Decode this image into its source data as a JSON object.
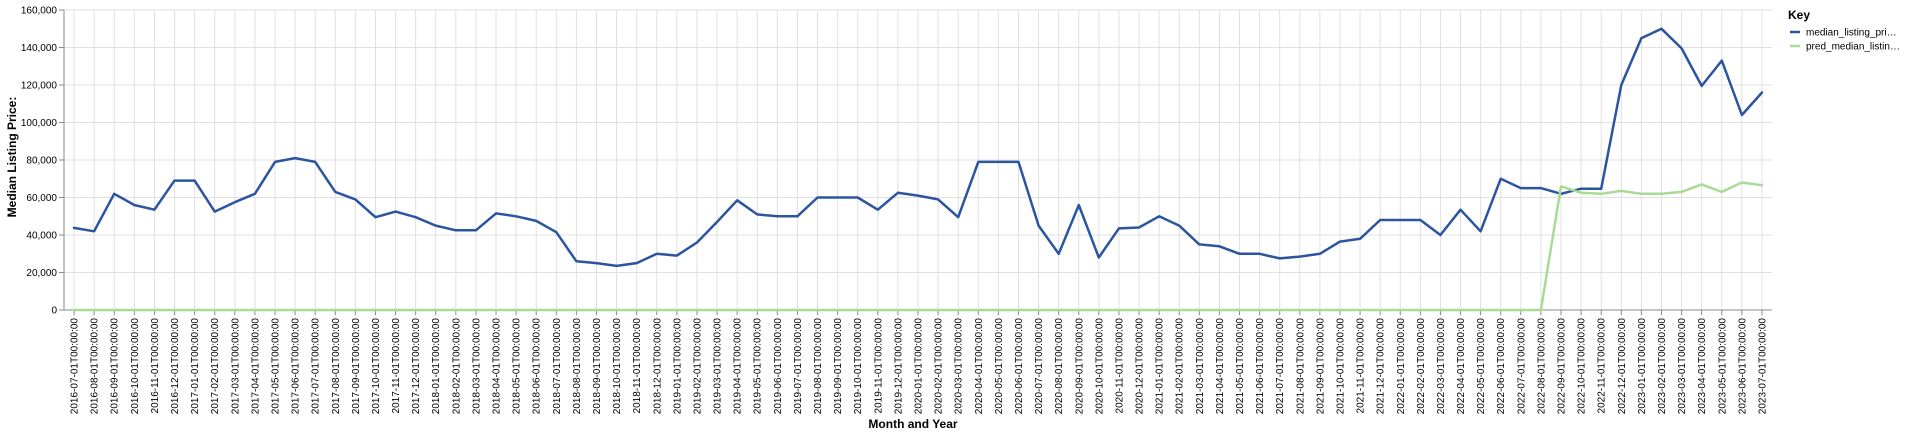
{
  "chart_data": {
    "type": "line",
    "xlabel": "Month and Year",
    "ylabel": "Median Listing Price:",
    "ylim": [
      0,
      160000
    ],
    "yticks": [
      0,
      20000,
      40000,
      60000,
      80000,
      100000,
      120000,
      140000,
      160000
    ],
    "grid": true,
    "legend_position": "right",
    "legend_title": "Key",
    "x": [
      "2016-07-01T00:00:00",
      "2016-08-01T00:00:00",
      "2016-09-01T00:00:00",
      "2016-10-01T00:00:00",
      "2016-11-01T00:00:00",
      "2016-12-01T00:00:00",
      "2017-01-01T00:00:00",
      "2017-02-01T00:00:00",
      "2017-03-01T00:00:00",
      "2017-04-01T00:00:00",
      "2017-05-01T00:00:00",
      "2017-06-01T00:00:00",
      "2017-07-01T00:00:00",
      "2017-08-01T00:00:00",
      "2017-09-01T00:00:00",
      "2017-10-01T00:00:00",
      "2017-11-01T00:00:00",
      "2017-12-01T00:00:00",
      "2018-01-01T00:00:00",
      "2018-02-01T00:00:00",
      "2018-03-01T00:00:00",
      "2018-04-01T00:00:00",
      "2018-05-01T00:00:00",
      "2018-06-01T00:00:00",
      "2018-07-01T00:00:00",
      "2018-08-01T00:00:00",
      "2018-09-01T00:00:00",
      "2018-10-01T00:00:00",
      "2018-11-01T00:00:00",
      "2018-12-01T00:00:00",
      "2019-01-01T00:00:00",
      "2019-02-01T00:00:00",
      "2019-03-01T00:00:00",
      "2019-04-01T00:00:00",
      "2019-05-01T00:00:00",
      "2019-06-01T00:00:00",
      "2019-07-01T00:00:00",
      "2019-08-01T00:00:00",
      "2019-09-01T00:00:00",
      "2019-10-01T00:00:00",
      "2019-11-01T00:00:00",
      "2019-12-01T00:00:00",
      "2020-01-01T00:00:00",
      "2020-02-01T00:00:00",
      "2020-03-01T00:00:00",
      "2020-04-01T00:00:00",
      "2020-05-01T00:00:00",
      "2020-06-01T00:00:00",
      "2020-07-01T00:00:00",
      "2020-08-01T00:00:00",
      "2020-09-01T00:00:00",
      "2020-10-01T00:00:00",
      "2020-11-01T00:00:00",
      "2020-12-01T00:00:00",
      "2021-01-01T00:00:00",
      "2021-02-01T00:00:00",
      "2021-03-01T00:00:00",
      "2021-04-01T00:00:00",
      "2021-05-01T00:00:00",
      "2021-06-01T00:00:00",
      "2021-07-01T00:00:00",
      "2021-08-01T00:00:00",
      "2021-09-01T00:00:00",
      "2021-10-01T00:00:00",
      "2021-11-01T00:00:00",
      "2021-12-01T00:00:00",
      "2022-01-01T00:00:00",
      "2022-02-01T00:00:00",
      "2022-03-01T00:00:00",
      "2022-04-01T00:00:00",
      "2022-05-01T00:00:00",
      "2022-06-01T00:00:00",
      "2022-07-01T00:00:00",
      "2022-08-01T00:00:00",
      "2022-09-01T00:00:00",
      "2022-10-01T00:00:00",
      "2022-11-01T00:00:00",
      "2022-12-01T00:00:00",
      "2023-01-01T00:00:00",
      "2023-02-01T00:00:00",
      "2023-03-01T00:00:00",
      "2023-04-01T00:00:00",
      "2023-05-01T00:00:00",
      "2023-06-01T00:00:00",
      "2023-07-01T00:00:00"
    ],
    "series": [
      {
        "name": "median_listing_pri…",
        "color": "#2c55a0",
        "values": [
          43800,
          42000,
          62000,
          56000,
          53500,
          69000,
          69000,
          52500,
          57500,
          62000,
          79000,
          81000,
          79000,
          63000,
          59000,
          49500,
          52500,
          49500,
          45000,
          42500,
          42500,
          51500,
          50000,
          47500,
          41500,
          26000,
          25000,
          23500,
          25000,
          30000,
          29000,
          36000,
          47000,
          58500,
          51000,
          50000,
          50000,
          60000,
          60000,
          60000,
          53500,
          62500,
          61000,
          59000,
          49500,
          79000,
          79000,
          79000,
          45000,
          30000,
          56000,
          28000,
          43500,
          44000,
          50000,
          45000,
          35000,
          34000,
          30000,
          30000,
          27500,
          28500,
          30000,
          36500,
          38000,
          48000,
          48000,
          48000,
          40000,
          53500,
          42000,
          70000,
          65000,
          65000,
          62000,
          64700,
          64700,
          120000,
          145000,
          150000,
          139500,
          119500,
          133000,
          104000,
          116000
        ]
      },
      {
        "name": "pred_median_listin…",
        "color": "#a8dc96",
        "values": [
          0,
          0,
          0,
          0,
          0,
          0,
          0,
          0,
          0,
          0,
          0,
          0,
          0,
          0,
          0,
          0,
          0,
          0,
          0,
          0,
          0,
          0,
          0,
          0,
          0,
          0,
          0,
          0,
          0,
          0,
          0,
          0,
          0,
          0,
          0,
          0,
          0,
          0,
          0,
          0,
          0,
          0,
          0,
          0,
          0,
          0,
          0,
          0,
          0,
          0,
          0,
          0,
          0,
          0,
          0,
          0,
          0,
          0,
          0,
          0,
          0,
          0,
          0,
          0,
          0,
          0,
          0,
          0,
          0,
          0,
          0,
          0,
          0,
          0,
          66000,
          62500,
          62000,
          63500,
          62000,
          62000,
          63000,
          67000,
          63000,
          68000,
          66500
        ]
      }
    ]
  }
}
